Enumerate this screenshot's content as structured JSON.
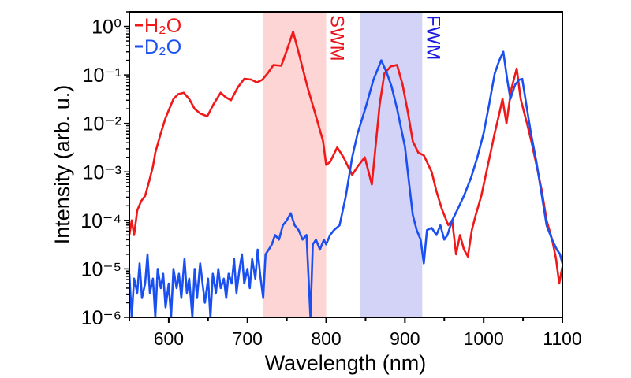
{
  "chart_data": {
    "type": "line",
    "title": "",
    "xlabel": "Wavelength (nm)",
    "ylabel": "Intensity (arb. u.)",
    "xlim": [
      550,
      1100
    ],
    "ylim": [
      1e-06,
      2
    ],
    "yscale": "log",
    "grid": false,
    "legend_position": "top-left",
    "xticks": [
      600,
      700,
      800,
      900,
      1000,
      1100
    ],
    "xtick_labels": [
      "600",
      "700",
      "800",
      "900",
      "1000",
      "1100"
    ],
    "yticks": [
      1,
      0.1,
      0.01,
      0.001,
      0.0001,
      1e-05,
      1e-06
    ],
    "ytick_labels": [
      "10⁰",
      "10⁻¹",
      "10⁻²",
      "10⁻³",
      "10⁻⁴",
      "10⁻⁵",
      "10⁻⁶"
    ],
    "shaded_regions": [
      {
        "label": "SWM",
        "x_range": [
          720,
          800
        ],
        "color": "#fdd5d5",
        "label_color": "#e8141b"
      },
      {
        "label": "FWM",
        "x_range": [
          843,
          922
        ],
        "color": "#d3d3f7",
        "label_color": "#1a1ae0"
      }
    ],
    "series": [
      {
        "name": "H₂O",
        "color": "#f01818",
        "x": [
          550,
          553,
          556,
          560,
          565,
          570,
          575,
          580,
          583,
          590,
          596,
          606,
          612,
          619,
          626,
          633,
          640,
          649,
          657,
          666,
          672,
          679,
          688,
          696,
          705,
          712,
          719,
          726,
          733,
          743,
          750,
          758,
          766,
          776,
          786,
          796,
          800,
          805,
          814,
          822,
          833,
          840,
          849,
          858,
          862,
          868,
          874,
          882,
          890,
          897,
          904,
          910,
          917,
          924,
          934,
          940,
          947,
          955,
          960,
          965,
          970,
          975,
          980,
          985,
          990,
          997,
          1005,
          1014,
          1020,
          1024,
          1029,
          1035,
          1042,
          1047,
          1055,
          1061,
          1067,
          1074,
          1080,
          1087,
          1092,
          1096,
          1100
        ],
        "y": [
          5e-05,
          0.0001,
          5e-05,
          0.00016,
          0.00025,
          0.00032,
          0.00063,
          0.0013,
          0.0025,
          0.0063,
          0.013,
          0.032,
          0.04,
          0.043,
          0.032,
          0.02,
          0.016,
          0.014,
          0.025,
          0.043,
          0.035,
          0.03,
          0.056,
          0.083,
          0.08,
          0.07,
          0.08,
          0.11,
          0.16,
          0.155,
          0.32,
          0.78,
          0.25,
          0.058,
          0.016,
          0.0043,
          0.0014,
          0.0016,
          0.0032,
          0.002,
          0.00087,
          0.0013,
          0.002,
          0.00055,
          0.0025,
          0.025,
          0.107,
          0.15,
          0.16,
          0.063,
          0.016,
          0.0043,
          0.0025,
          0.0022,
          0.001,
          0.0004,
          0.00017,
          8e-05,
          0.0001,
          2e-05,
          5e-05,
          2.5e-05,
          1.8e-05,
          6.3e-05,
          0.00013,
          0.00032,
          0.0013,
          0.0063,
          0.016,
          0.032,
          0.01,
          0.05,
          0.135,
          0.032,
          0.01,
          0.004,
          0.0014,
          0.0004,
          0.0001,
          4e-05,
          1.6e-05,
          5e-06,
          1.1e-05
        ]
      },
      {
        "name": "D₂O",
        "color": "#1a4ff0",
        "x": [
          550,
          553,
          556,
          560,
          563,
          566,
          570,
          573,
          576,
          580,
          583,
          586,
          590,
          593,
          596,
          600,
          603,
          606,
          610,
          613,
          616,
          620,
          623,
          626,
          630,
          633,
          636,
          640,
          643,
          646,
          650,
          653,
          656,
          660,
          663,
          666,
          670,
          673,
          676,
          680,
          683,
          686,
          690,
          693,
          696,
          700,
          703,
          706,
          710,
          713,
          716,
          720,
          723,
          727,
          731,
          735,
          740,
          745,
          750,
          755,
          760,
          765,
          770,
          775,
          780,
          783,
          787,
          792,
          797,
          800,
          805,
          810,
          817,
          825,
          833,
          840,
          850,
          860,
          870,
          877,
          883,
          890,
          900,
          905,
          910,
          915,
          920,
          924,
          928,
          934,
          940,
          945,
          950,
          954,
          960,
          967,
          975,
          984,
          992,
          1000,
          1007,
          1014,
          1020,
          1025,
          1030,
          1034,
          1040,
          1045,
          1049,
          1055,
          1060,
          1067,
          1074,
          1080,
          1087,
          1093,
          1097,
          1100
        ],
        "y": [
          7.9e-06,
          1e-06,
          6.3e-06,
          3.2e-06,
          1.3e-05,
          2.5e-06,
          5e-06,
          2e-05,
          3.2e-06,
          6.3e-06,
          1e-06,
          1e-05,
          4e-06,
          7.9e-06,
          1.6e-06,
          5e-06,
          1e-06,
          1e-05,
          4e-06,
          7.9e-06,
          2.5e-06,
          1.6e-05,
          3.2e-06,
          6.3e-06,
          1e-06,
          1e-05,
          2.5e-06,
          1.3e-05,
          5e-06,
          2e-06,
          6.3e-06,
          1e-06,
          7.9e-06,
          3.2e-06,
          1e-05,
          4e-06,
          6.3e-06,
          2.5e-06,
          7.9e-06,
          5e-06,
          1.6e-05,
          3.2e-06,
          1e-05,
          2e-05,
          5e-06,
          1e-05,
          4e-06,
          1.6e-05,
          6.3e-06,
          2.5e-05,
          7.9e-06,
          2.5e-06,
          2e-05,
          2.5e-05,
          3.2e-05,
          5e-05,
          4e-05,
          7.9e-05,
          0.0001,
          0.00014,
          7.9e-05,
          6.3e-05,
          4e-05,
          5e-05,
          1e-06,
          3.2e-05,
          4e-05,
          2.5e-05,
          4e-05,
          3.2e-05,
          5e-05,
          6.3e-05,
          7.9e-05,
          0.00032,
          0.002,
          0.0063,
          0.021,
          0.079,
          0.2,
          0.11,
          0.058,
          0.02,
          0.0033,
          0.00063,
          0.00013,
          6.3e-05,
          4e-05,
          1.3e-05,
          6.3e-05,
          7e-05,
          5e-05,
          7.9e-05,
          4e-05,
          5e-05,
          0.0001,
          0.00017,
          0.00032,
          0.00076,
          0.002,
          0.0063,
          0.025,
          0.107,
          0.2,
          0.3,
          0.079,
          0.032,
          0.063,
          0.079,
          0.083,
          0.02,
          0.0063,
          0.0016,
          0.00032,
          7.9e-05,
          4e-05,
          2.5e-05,
          2e-05,
          1.3e-05
        ]
      }
    ]
  }
}
